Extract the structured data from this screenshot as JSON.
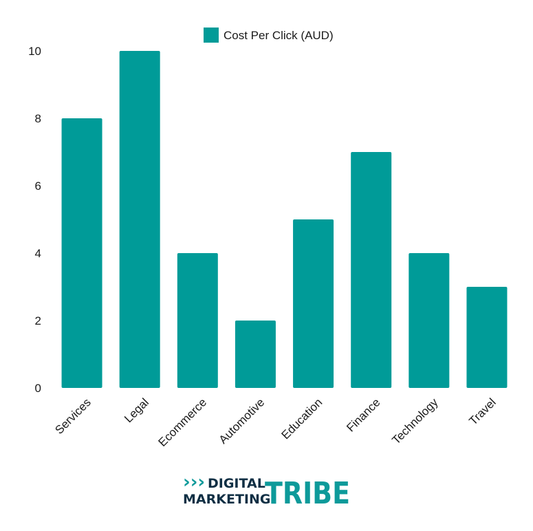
{
  "chart_data": {
    "type": "bar",
    "categories": [
      "Services",
      "Legal",
      "Ecommerce",
      "Automotive",
      "Education",
      "Finance",
      "Technology",
      "Travel"
    ],
    "series": [
      {
        "name": "Cost Per Click (AUD)",
        "values": [
          8,
          10,
          4,
          2,
          5,
          7,
          4,
          3
        ]
      }
    ],
    "yticks": [
      "0",
      "2",
      "4",
      "6",
      "8",
      "10"
    ],
    "ylim": [
      0,
      10
    ],
    "grid": false,
    "legend_position": "top-center",
    "bar_color": "#009b98"
  },
  "logo": {
    "line1": "DIGITAL",
    "line2": "MARKETING",
    "word": "TRIBE",
    "chevrons": "›››",
    "color_dark": "#0f2f44",
    "color_accent": "#0d9a9a"
  }
}
